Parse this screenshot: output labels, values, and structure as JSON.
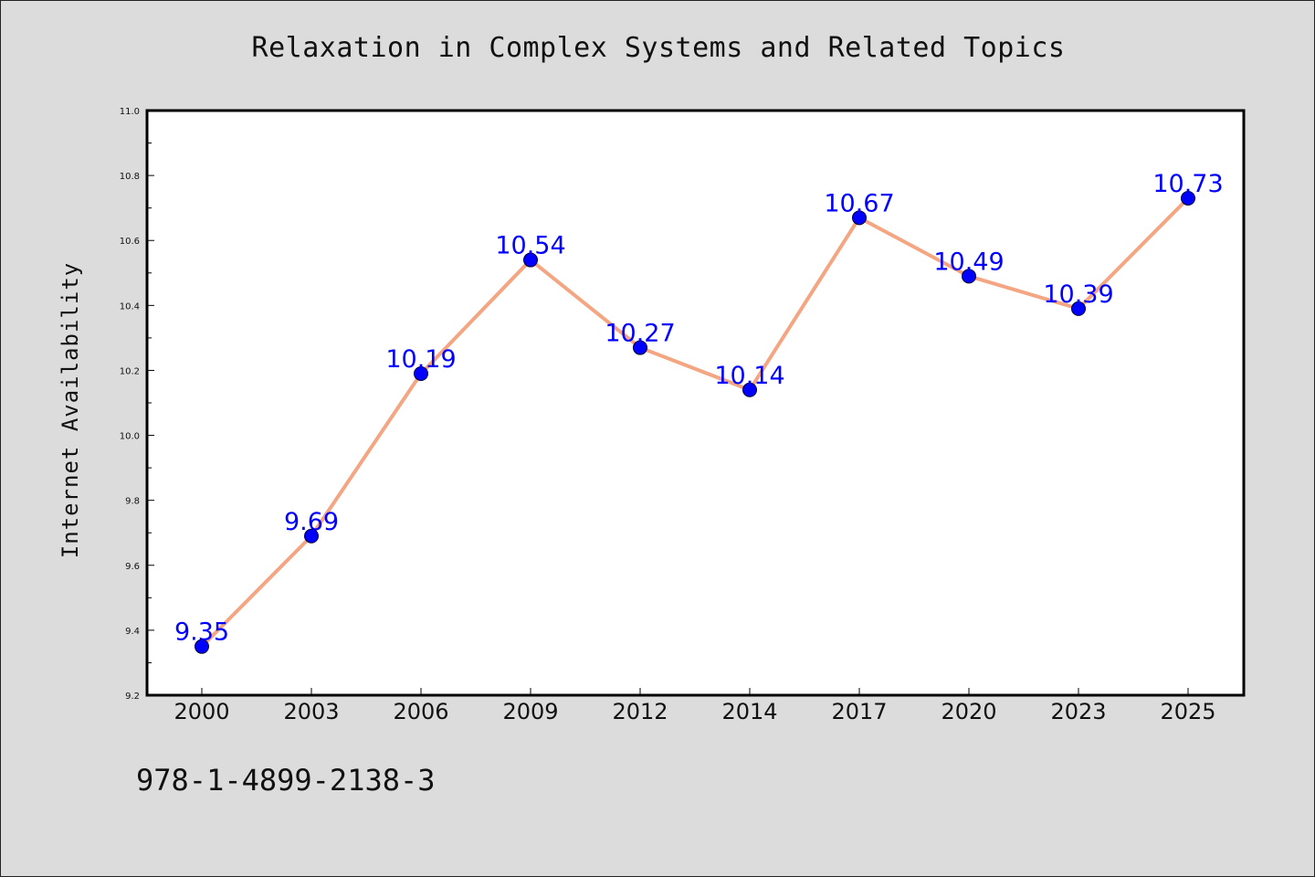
{
  "chart_data": {
    "type": "line",
    "title": "Relaxation in Complex Systems and Related Topics",
    "xlabel": "",
    "ylabel": "Internet Availability",
    "categories": [
      "2000",
      "2003",
      "2006",
      "2009",
      "2012",
      "2014",
      "2017",
      "2020",
      "2023",
      "2025"
    ],
    "series": [
      {
        "values": [
          9.35,
          9.69,
          10.19,
          10.54,
          10.27,
          10.14,
          10.67,
          10.49,
          10.39,
          10.73
        ],
        "line_color": "#f4a582",
        "marker_color": "#0000ff",
        "label_color": "#0000ff"
      }
    ],
    "data_labels": [
      "9.35",
      "9.69",
      "10.19",
      "10.54",
      "10.27",
      "10.14",
      "10.67",
      "10.49",
      "10.39",
      "10.73"
    ],
    "ylim": [
      9.2,
      11.0
    ],
    "y_ticks": [
      "9.2",
      "9.4",
      "9.6",
      "9.8",
      "10.0",
      "10.2",
      "10.4",
      "10.6",
      "10.8",
      "11.0"
    ],
    "grid": false,
    "legend": "none"
  },
  "footer": {
    "isbn": "978-1-4899-2138-3"
  },
  "colors": {
    "background": "#dcdcdc",
    "plot_background": "#ffffff"
  }
}
